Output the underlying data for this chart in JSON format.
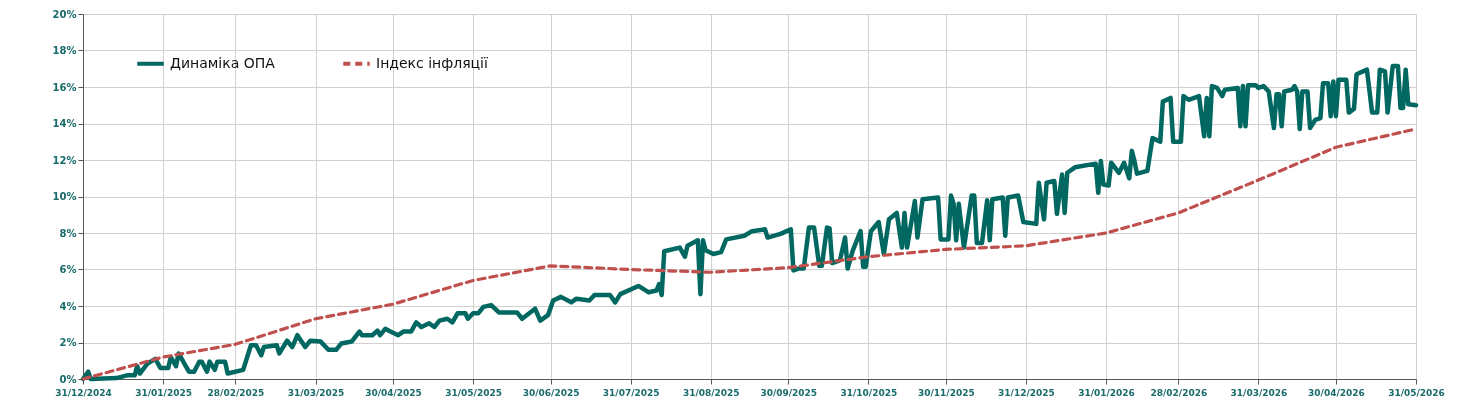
{
  "chart_data": {
    "type": "line",
    "xlim": [
      "2024-12-31",
      "2026-05-31"
    ],
    "xticks": [
      {
        "value": "2024-12-31",
        "label": "31/12/2024"
      },
      {
        "value": "2025-01-31",
        "label": "31/01/2025"
      },
      {
        "value": "2025-02-28",
        "label": "28/02/2025"
      },
      {
        "value": "2025-03-31",
        "label": "31/03/2025"
      },
      {
        "value": "2025-04-30",
        "label": "30/04/2025"
      },
      {
        "value": "2025-05-31",
        "label": "31/05/2025"
      },
      {
        "value": "2025-06-30",
        "label": "30/06/2025"
      },
      {
        "value": "2025-07-31",
        "label": "31/07/2025"
      },
      {
        "value": "2025-08-31",
        "label": "31/08/2025"
      },
      {
        "value": "2025-09-30",
        "label": "30/09/2025"
      },
      {
        "value": "2025-10-31",
        "label": "31/10/2025"
      },
      {
        "value": "2025-11-30",
        "label": "30/11/2025"
      },
      {
        "value": "2025-12-31",
        "label": "31/12/2025"
      },
      {
        "value": "2026-01-31",
        "label": "31/01/2026"
      },
      {
        "value": "2026-02-28",
        "label": "28/02/2026"
      },
      {
        "value": "2026-03-31",
        "label": "31/03/2026"
      },
      {
        "value": "2026-04-30",
        "label": "30/04/2026"
      },
      {
        "value": "2026-05-31",
        "label": "31/05/2026"
      }
    ],
    "ylim": [
      0,
      20
    ],
    "yticks": [
      {
        "value": 0,
        "label": "0%"
      },
      {
        "value": 2,
        "label": "2%"
      },
      {
        "value": 4,
        "label": "4%"
      },
      {
        "value": 6,
        "label": "6%"
      },
      {
        "value": 8,
        "label": "8%"
      },
      {
        "value": 10,
        "label": "10%"
      },
      {
        "value": 12,
        "label": "12%"
      },
      {
        "value": 14,
        "label": "14%"
      },
      {
        "value": 16,
        "label": "16%"
      },
      {
        "value": 18,
        "label": "18%"
      },
      {
        "value": 20,
        "label": "20%"
      }
    ],
    "grid": true,
    "legend": "top left",
    "marker": "none",
    "series": [
      {
        "name": "Динаміка ОПА",
        "color": "#006860",
        "line_style": "solid",
        "x": [
          "2024-12-31",
          "2025-01-02",
          "2025-01-03",
          "2025-01-13",
          "2025-01-17",
          "2025-01-20",
          "2025-01-21",
          "2025-01-22",
          "2025-01-25",
          "2025-01-28",
          "2025-01-30",
          "2025-02-02",
          "2025-02-03",
          "2025-02-05",
          "2025-02-06",
          "2025-02-10",
          "2025-02-12",
          "2025-02-14",
          "2025-02-15",
          "2025-02-17",
          "2025-02-18",
          "2025-02-20",
          "2025-02-21",
          "2025-02-24",
          "2025-02-25",
          "2025-03-03",
          "2025-03-06",
          "2025-03-08",
          "2025-03-10",
          "2025-03-11",
          "2025-03-16",
          "2025-03-17",
          "2025-03-20",
          "2025-03-22",
          "2025-03-24",
          "2025-03-27",
          "2025-03-29",
          "2025-04-02",
          "2025-04-05",
          "2025-04-08",
          "2025-04-10",
          "2025-04-14",
          "2025-04-17",
          "2025-04-18",
          "2025-04-22",
          "2025-04-24",
          "2025-04-25",
          "2025-04-27",
          "2025-04-29",
          "2025-05-02",
          "2025-05-04",
          "2025-05-07",
          "2025-05-09",
          "2025-05-11",
          "2025-05-14",
          "2025-05-16",
          "2025-05-18",
          "2025-05-21",
          "2025-05-23",
          "2025-05-25",
          "2025-05-28",
          "2025-05-29",
          "2025-05-31",
          "2025-06-02",
          "2025-06-04",
          "2025-06-07",
          "2025-06-10",
          "2025-06-17",
          "2025-06-19",
          "2025-06-24",
          "2025-06-26",
          "2025-06-29",
          "2025-07-01",
          "2025-07-04",
          "2025-07-08",
          "2025-07-10",
          "2025-07-15",
          "2025-07-17",
          "2025-07-23",
          "2025-07-25",
          "2025-07-27",
          "2025-08-03",
          "2025-08-07",
          "2025-08-10",
          "2025-08-11",
          "2025-08-12",
          "2025-08-13",
          "2025-08-19",
          "2025-08-21",
          "2025-08-22",
          "2025-08-26",
          "2025-08-27",
          "2025-08-28",
          "2025-08-29",
          "2025-09-01",
          "2025-09-04",
          "2025-09-06",
          "2025-09-13",
          "2025-09-16",
          "2025-09-21",
          "2025-09-22",
          "2025-09-27",
          "2025-10-01",
          "2025-10-02",
          "2025-10-04",
          "2025-10-06",
          "2025-10-08",
          "2025-10-10",
          "2025-10-12",
          "2025-10-13",
          "2025-10-15",
          "2025-10-16",
          "2025-10-17",
          "2025-10-20",
          "2025-10-22",
          "2025-10-23",
          "2025-10-25",
          "2025-10-28",
          "2025-10-29",
          "2025-10-30",
          "2025-11-01",
          "2025-11-04",
          "2025-11-06",
          "2025-11-08",
          "2025-11-11",
          "2025-11-13",
          "2025-11-14",
          "2025-11-15",
          "2025-11-18",
          "2025-11-19",
          "2025-11-21",
          "2025-11-27",
          "2025-11-28",
          "2025-12-01",
          "2025-12-02",
          "2025-12-03",
          "2025-12-04",
          "2025-12-05",
          "2025-12-07",
          "2025-12-10",
          "2025-12-11",
          "2025-12-12",
          "2025-12-14",
          "2025-12-16",
          "2025-12-17",
          "2025-12-18",
          "2025-12-22",
          "2025-12-23",
          "2025-12-24",
          "2025-12-28",
          "2025-12-30",
          "2026-01-04",
          "2026-01-05",
          "2026-01-07",
          "2026-01-08",
          "2026-01-11",
          "2026-01-12",
          "2026-01-14",
          "2026-01-15",
          "2026-01-16",
          "2026-01-19",
          "2026-01-27",
          "2026-01-28",
          "2026-01-29",
          "2026-01-30",
          "2026-02-01",
          "2026-02-02",
          "2026-02-05",
          "2026-02-07",
          "2026-02-09",
          "2026-02-10",
          "2026-02-11",
          "2026-02-12",
          "2026-02-16",
          "2026-02-18",
          "2026-02-21",
          "2026-02-22",
          "2026-02-25",
          "2026-02-26",
          "2026-03-01",
          "2026-03-02",
          "2026-03-04",
          "2026-03-08",
          "2026-03-10",
          "2026-03-11",
          "2026-03-12",
          "2026-03-13",
          "2026-03-15",
          "2026-03-17",
          "2026-03-18",
          "2026-03-23",
          "2026-03-24",
          "2026-03-25",
          "2026-03-26",
          "2026-03-27",
          "2026-03-30",
          "2026-03-31",
          "2026-04-02",
          "2026-04-04",
          "2026-04-06",
          "2026-04-07",
          "2026-04-08",
          "2026-04-09",
          "2026-04-10",
          "2026-04-13",
          "2026-04-14",
          "2026-04-15",
          "2026-04-16",
          "2026-04-17",
          "2026-04-19",
          "2026-04-20",
          "2026-04-22",
          "2026-04-24",
          "2026-04-25",
          "2026-04-27",
          "2026-04-28",
          "2026-04-29",
          "2026-04-30",
          "2026-05-01",
          "2026-05-04",
          "2026-05-05",
          "2026-05-07",
          "2026-05-08",
          "2026-05-12",
          "2026-05-14",
          "2026-05-16",
          "2026-05-17",
          "2026-05-19",
          "2026-05-20",
          "2026-05-22",
          "2026-05-24",
          "2026-05-25",
          "2026-05-26",
          "2026-05-27",
          "2026-05-28",
          "2026-05-31"
        ],
        "values": [
          0,
          0.4,
          0,
          0.05,
          0.2,
          0.2,
          0.7,
          0.3,
          0.85,
          1.1,
          0.6,
          0.6,
          1.2,
          0.7,
          1.4,
          0.4,
          0.4,
          0.95,
          0.95,
          0.4,
          0.95,
          0.5,
          0.95,
          0.95,
          0.3,
          0.5,
          1.85,
          1.85,
          1.3,
          1.75,
          1.85,
          1.4,
          2.1,
          1.75,
          2.4,
          1.75,
          2.1,
          2.05,
          1.6,
          1.6,
          1.95,
          2.05,
          2.6,
          2.4,
          2.4,
          2.65,
          2.4,
          2.75,
          2.6,
          2.4,
          2.6,
          2.6,
          3.1,
          2.85,
          3.05,
          2.85,
          3.2,
          3.3,
          3.1,
          3.6,
          3.6,
          3.3,
          3.6,
          3.6,
          3.95,
          4.05,
          3.65,
          3.65,
          3.3,
          3.85,
          3.2,
          3.5,
          4.3,
          4.5,
          4.2,
          4.4,
          4.3,
          4.6,
          4.6,
          4.2,
          4.65,
          5.1,
          4.75,
          4.85,
          5.2,
          4.6,
          7.0,
          7.2,
          6.7,
          7.3,
          7.6,
          4.65,
          7.6,
          7.05,
          6.85,
          6.95,
          7.65,
          7.85,
          8.1,
          8.2,
          7.75,
          7.95,
          8.2,
          5.95,
          6.05,
          6.05,
          8.3,
          8.3,
          6.2,
          6.2,
          8.3,
          8.25,
          6.35,
          6.5,
          7.75,
          6.05,
          7.05,
          8.1,
          6.15,
          6.15,
          8.1,
          8.6,
          6.85,
          8.75,
          9.1,
          7.2,
          9.1,
          7.2,
          9.75,
          7.75,
          9.85,
          9.95,
          7.65,
          7.65,
          10.05,
          9.6,
          7.6,
          9.6,
          7.2,
          10.05,
          10.05,
          7.45,
          7.45,
          9.8,
          7.6,
          9.85,
          9.95,
          7.85,
          9.95,
          10.05,
          8.6,
          8.5,
          10.75,
          8.75,
          10.75,
          10.85,
          9.05,
          11.2,
          9.1,
          11.3,
          11.6,
          11.8,
          10.2,
          11.95,
          10.65,
          10.6,
          11.85,
          11.3,
          11.85,
          11.0,
          12.5,
          11.95,
          11.25,
          11.4,
          13.2,
          13.0,
          15.2,
          15.4,
          13.0,
          13.0,
          15.5,
          15.3,
          15.5,
          13.3,
          15.4,
          13.3,
          16.05,
          15.95,
          15.5,
          15.85,
          15.95,
          13.85,
          16.05,
          13.85,
          16.1,
          16.1,
          15.95,
          16.05,
          15.75,
          13.75,
          15.6,
          15.6,
          13.85,
          15.75,
          15.85,
          16.05,
          15.75,
          13.7,
          15.75,
          15.75,
          13.75,
          14.2,
          14.3,
          16.2,
          16.2,
          14.4,
          16.3,
          14.4,
          16.4,
          16.4,
          14.6,
          14.8,
          16.7,
          16.95,
          14.6,
          14.6,
          16.95,
          16.85,
          14.6,
          17.15,
          17.15,
          14.85,
          14.85,
          16.95,
          15.05,
          15.0
        ]
      },
      {
        "name": "Індекс інфляції",
        "color": "#c0504d",
        "line_style": "dashed",
        "x": [
          "2024-12-31",
          "2025-01-31",
          "2025-02-28",
          "2025-03-31",
          "2025-04-30",
          "2025-05-31",
          "2025-06-30",
          "2025-07-31",
          "2025-08-31",
          "2025-09-30",
          "2025-10-31",
          "2025-11-30",
          "2025-12-31",
          "2026-01-31",
          "2026-02-28",
          "2026-03-31",
          "2026-04-30",
          "2026-05-31"
        ],
        "values": [
          0,
          1.2,
          1.9,
          3.3,
          4.1,
          5.4,
          6.2,
          6.0,
          5.85,
          6.1,
          6.7,
          7.1,
          7.3,
          8.0,
          9.1,
          10.9,
          12.7,
          13.7
        ]
      }
    ]
  }
}
